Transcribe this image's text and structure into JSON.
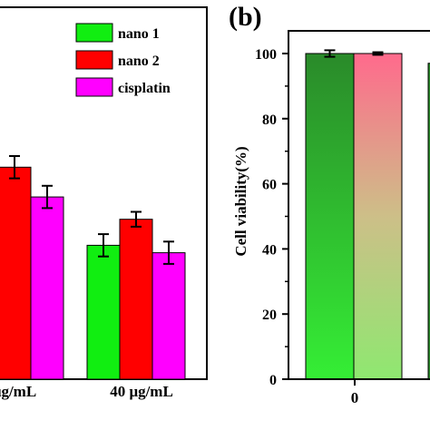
{
  "chart_data": [
    {
      "panel_label": "",
      "type": "bar",
      "categories": [
        "μg/mL",
        "40 μg/mL"
      ],
      "series": [
        {
          "name": "nano 1",
          "color": "#11ee11",
          "values": [
            null,
            36
          ],
          "errors": [
            null,
            3
          ]
        },
        {
          "name": "nano 2",
          "color": "#ff0000",
          "values": [
            57,
            43
          ],
          "errors": [
            3,
            2
          ]
        },
        {
          "name": "cisplatin",
          "color": "#ff00ff",
          "values": [
            49,
            34
          ],
          "errors": [
            3,
            3
          ]
        }
      ],
      "ylim": [
        0,
        100
      ],
      "legend": "top-right",
      "ylabel": "",
      "xlabel": ""
    },
    {
      "panel_label": "(b)",
      "type": "bar",
      "categories": [
        "0"
      ],
      "series": [
        {
          "name": "",
          "values": [
            100
          ],
          "errors": [
            1
          ],
          "gradient": [
            "#2a8a2a",
            "#35ee35"
          ]
        },
        {
          "name": "",
          "values": [
            100
          ],
          "errors": [
            0.4
          ],
          "gradient": [
            "#ff6a8c",
            "#8ee870"
          ]
        }
      ],
      "partial_next_bar": {
        "value": 97
      },
      "ylabel": "Cell viability(%)",
      "yticks": [
        0,
        20,
        40,
        60,
        80,
        100
      ],
      "ylim": [
        0,
        107
      ],
      "xlabel": ""
    }
  ]
}
